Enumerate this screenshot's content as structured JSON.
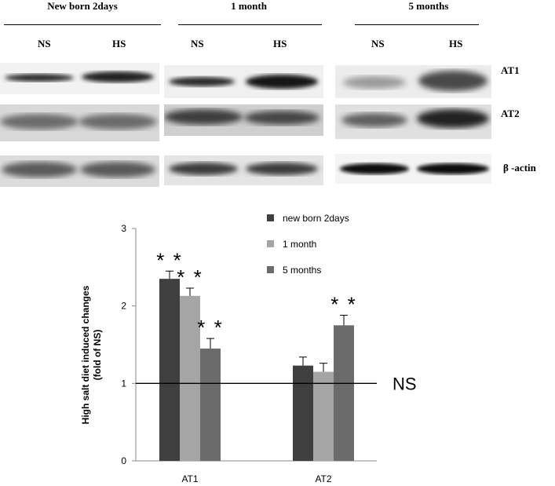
{
  "blot": {
    "groups": [
      {
        "title": "New born 2days",
        "lanes": [
          "NS",
          "HS"
        ]
      },
      {
        "title": "1 month",
        "lanes": [
          "NS",
          "HS"
        ]
      },
      {
        "title": "5 months",
        "lanes": [
          "NS",
          "HS"
        ]
      }
    ],
    "rows": [
      "AT1",
      "AT2",
      "β -actin"
    ]
  },
  "chart_data": {
    "type": "bar",
    "categories": [
      "AT1",
      "AT2"
    ],
    "series": [
      {
        "name": "new born 2days",
        "color": "#3f3f3f",
        "values": [
          2.35,
          1.23
        ],
        "errors": [
          0.1,
          0.11
        ],
        "significance": [
          "**",
          ""
        ]
      },
      {
        "name": "1 month",
        "color": "#a5a5a5",
        "values": [
          2.13,
          1.15
        ],
        "errors": [
          0.1,
          0.11
        ],
        "significance": [
          "**",
          ""
        ]
      },
      {
        "name": "5 months",
        "color": "#6b6b6b",
        "values": [
          1.45,
          1.75
        ],
        "errors": [
          0.13,
          0.13
        ],
        "significance": [
          "**",
          "**"
        ]
      }
    ],
    "ylabel": "High salt diet induced changes (fold of NS)",
    "ylabel_lines": [
      "High salt diet induced changes",
      "(fold of NS)"
    ],
    "ylim": [
      0,
      3
    ],
    "yticks": [
      0,
      1,
      2,
      3
    ],
    "reference_line": {
      "value": 1,
      "label": "NS"
    },
    "legend_position": "top-right"
  }
}
